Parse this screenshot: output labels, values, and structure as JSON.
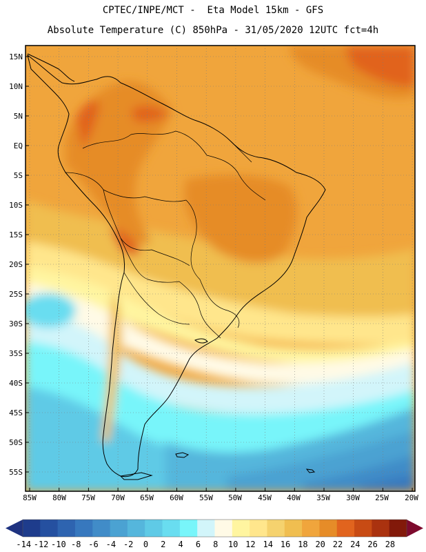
{
  "title": {
    "line1": "CPTEC/INPE/MCT -  Eta Model 15km - GFS",
    "line2": "Absolute Temperature (C) 850hPa - 31/05/2020 12UTC fct=4h"
  },
  "map": {
    "region": "South America",
    "lon_labels": [
      "85W",
      "80W",
      "75W",
      "70W",
      "65W",
      "60W",
      "55W",
      "50W",
      "45W",
      "40W",
      "35W",
      "30W",
      "25W",
      "20W"
    ],
    "lat_labels": [
      "15N",
      "10N",
      "5N",
      "EQ",
      "5S",
      "10S",
      "15S",
      "20S",
      "25S",
      "30S",
      "35S",
      "40S",
      "45S",
      "50S",
      "55S"
    ]
  },
  "colorbar": {
    "labels": [
      "-14",
      "-12",
      "-10",
      "-8",
      "-6",
      "-4",
      "-2",
      "0",
      "2",
      "4",
      "6",
      "8",
      "10",
      "12",
      "14",
      "16",
      "18",
      "20",
      "22",
      "24",
      "26",
      "28"
    ],
    "colors": [
      "#1e3c8c",
      "#2550a0",
      "#2e64b0",
      "#3778be",
      "#418cc8",
      "#4ba2d2",
      "#55b6dc",
      "#5fcae6",
      "#69ddf0",
      "#78f5fa",
      "#d2f5fa",
      "#fffae6",
      "#fff5a0",
      "#ffe68c",
      "#f5d26e",
      "#f0be50",
      "#f0a53c",
      "#e68c28",
      "#e1641e",
      "#c84b14",
      "#aa320f",
      "#82190a"
    ],
    "under_color": "#1e3280",
    "over_color": "#7d0a2d"
  }
}
